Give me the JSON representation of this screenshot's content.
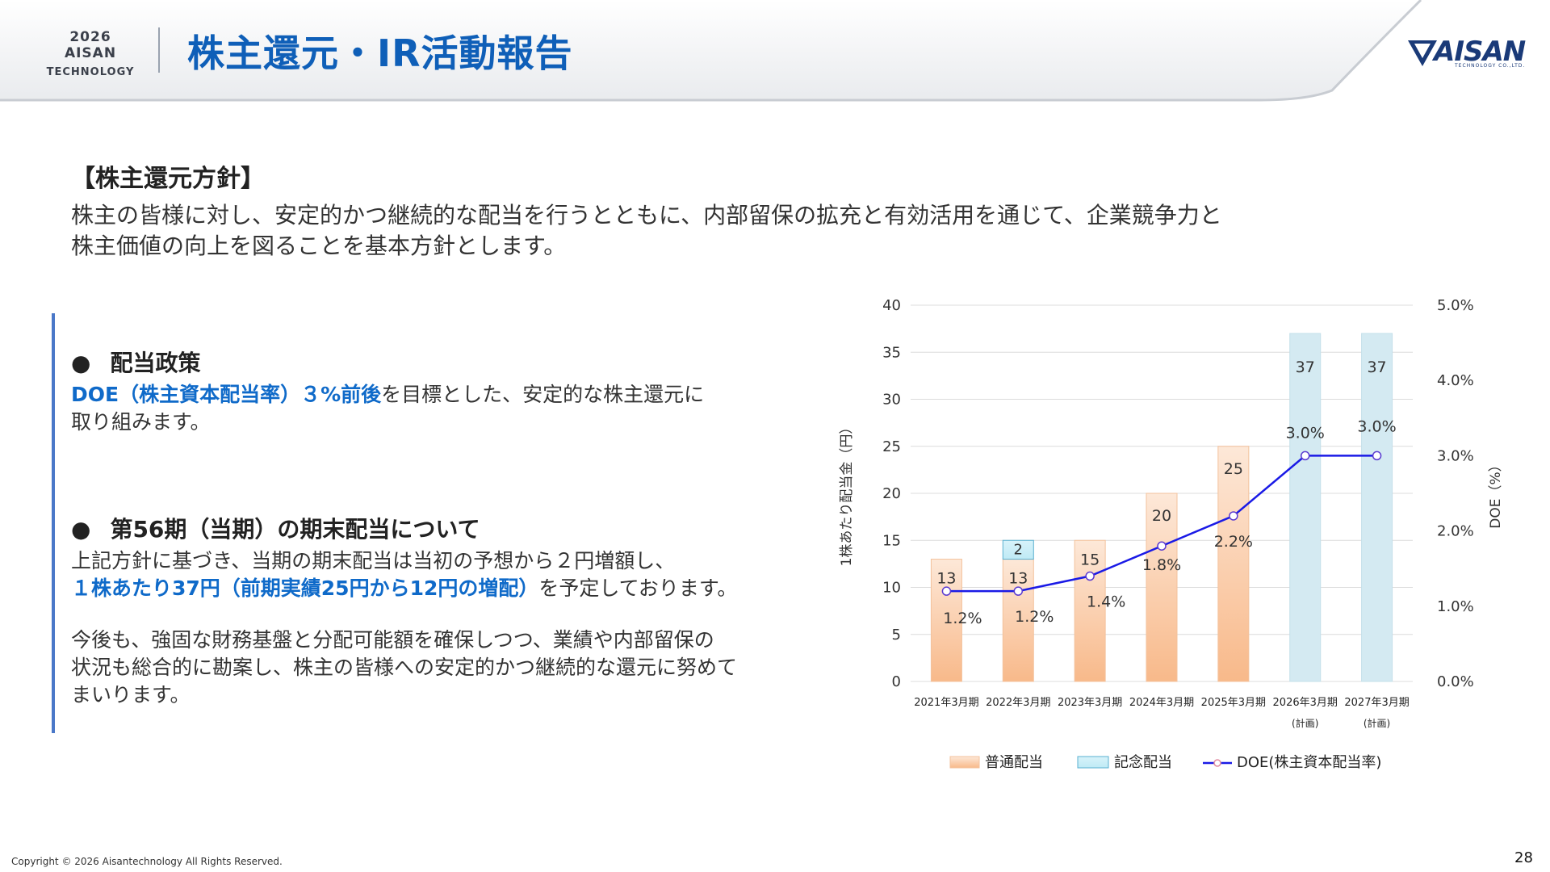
{
  "header": {
    "brand_line1": "2026 AISAN",
    "brand_line2": "TECHNOLOGY",
    "title": "株主還元・IR活動報告",
    "logo_text": "AISAN",
    "logo_sub": "TECHNOLOGY CO.,LTD."
  },
  "policy": {
    "heading": "【株主還元方針】",
    "intro_line1": "株主の皆様に対し、安定的かつ継続的な配当を行うとともに、内部留保の拡充と有効活用を通じて、企業競争力と",
    "intro_line2": "株主価値の向上を図ることを基本方針とします。"
  },
  "section1": {
    "bullet": "●",
    "title": "配当政策",
    "line1_blue": "DOE（株主資本配当率）３%前後",
    "line1_rest": "を目標とした、安定的な株主還元に",
    "line2": "取り組みます。"
  },
  "section2": {
    "bullet": "●",
    "title": "第56期（当期）の期末配当について",
    "line1": "上記方針に基づき、当期の期末配当は当初の予想から２円増額し、",
    "line2_blue": "１株あたり37円（前期実績25円から12円の増配）",
    "line2_rest": "を予定しております。",
    "para2_line1": "今後も、強固な財務基盤と分配可能額を確保しつつ、業績や内部留保の",
    "para2_line2": "状況も総合的に勘案し、株主の皆様への安定的かつ継続的な還元に努めて",
    "para2_line3": "まいります。"
  },
  "chart_data": {
    "type": "bar",
    "categories": [
      "2021年3月期",
      "2022年3月期",
      "2023年3月期",
      "2024年3月期",
      "2025年3月期",
      "2026年3月期",
      "2027年3月期"
    ],
    "category_notes": [
      "",
      "",
      "",
      "",
      "",
      "(計画)",
      "(計画)"
    ],
    "series": [
      {
        "name": "普通配当",
        "values": [
          13,
          13,
          15,
          20,
          25,
          null,
          null
        ],
        "color": "#f8b98a"
      },
      {
        "name": "記念配当",
        "values": [
          0,
          2,
          0,
          0,
          0,
          0,
          0
        ],
        "color": "#bfeaf5"
      },
      {
        "name": "計画",
        "values": [
          null,
          null,
          null,
          null,
          null,
          37,
          37
        ],
        "color": "#d4eaf2"
      },
      {
        "name": "DOE(株主資本配当率)",
        "values": [
          1.2,
          1.2,
          1.4,
          1.8,
          2.2,
          3.0,
          3.0
        ],
        "color": "#1a1ae6",
        "axis": "right"
      }
    ],
    "bar_labels": [
      "13",
      "13",
      "15",
      "20",
      "25",
      "37",
      "37"
    ],
    "memorial_labels": [
      "",
      "2",
      "",
      "",
      "",
      "",
      ""
    ],
    "doe_labels": [
      "1.2%",
      "1.2%",
      "1.4%",
      "1.8%",
      "2.2%",
      "3.0%",
      "3.0%"
    ],
    "ylabel": "1株あたり配当金（円）",
    "y2label": "DOE（%）",
    "ylim": [
      0,
      40
    ],
    "y2lim": [
      0,
      5
    ],
    "yticks": [
      0,
      5,
      10,
      15,
      20,
      25,
      30,
      35,
      40
    ],
    "y2ticks": [
      "0.0%",
      "1.0%",
      "2.0%",
      "3.0%",
      "4.0%",
      "5.0%"
    ],
    "legend": [
      "普通配当",
      "記念配当",
      "DOE(株主資本配当率)"
    ],
    "legend_position": "bottom",
    "grid": true
  },
  "footer": {
    "copyright": "Copyright © 2026 Aisantechnology All Rights Reserved.",
    "page_number": "28"
  }
}
